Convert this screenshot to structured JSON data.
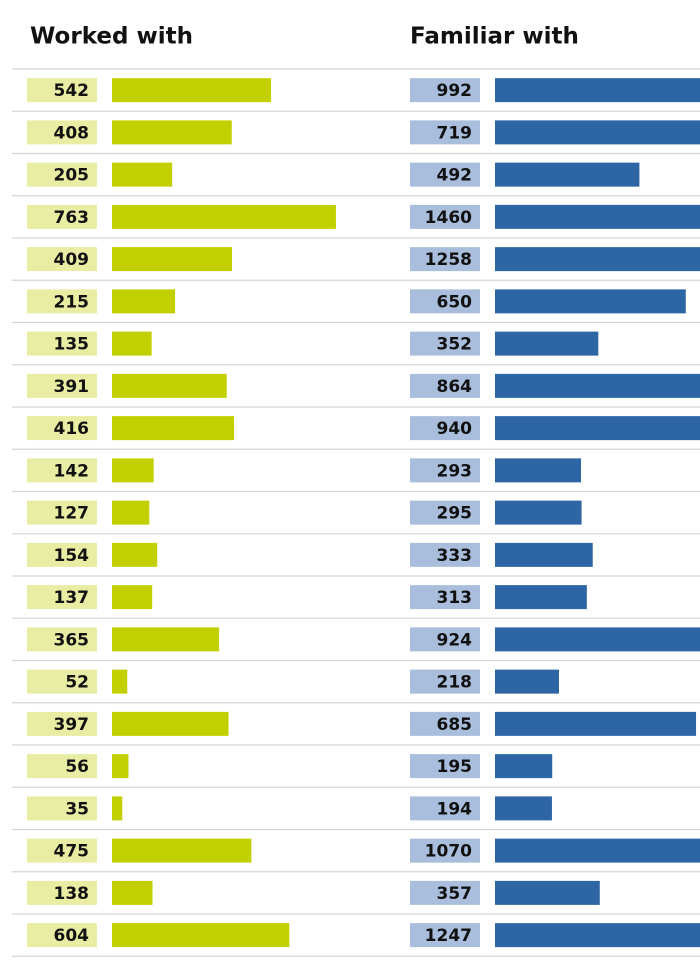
{
  "chart_data": [
    {
      "type": "bar",
      "title": "Worked with",
      "color": "#c3d000",
      "values": [
        542,
        408,
        205,
        763,
        409,
        215,
        135,
        391,
        416,
        142,
        127,
        154,
        137,
        365,
        52,
        397,
        56,
        35,
        475,
        138,
        604
      ]
    },
    {
      "type": "bar",
      "title": "Familiar with",
      "color": "#2e65a5",
      "values": [
        992,
        719,
        492,
        1460,
        1258,
        650,
        352,
        864,
        940,
        293,
        295,
        333,
        313,
        924,
        218,
        685,
        195,
        194,
        1070,
        357,
        1247
      ]
    }
  ]
}
